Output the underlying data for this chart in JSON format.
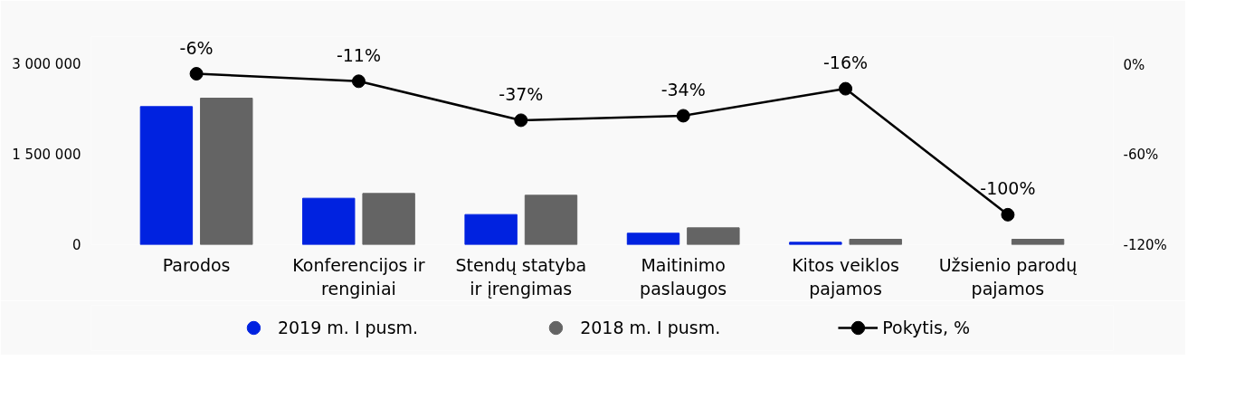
{
  "chart_data": {
    "type": "bar",
    "categories": [
      "Parodos",
      "Konferencijos ir renginiai",
      "Stendų statyba ir įrengimas",
      "Maitinimo paslaugos",
      "Kitos veiklos pajamos",
      "Užsienio parodų pajamos"
    ],
    "series": [
      {
        "name": "2019 m. I pusm.",
        "color": "#0022e0",
        "values": [
          2290000,
          770000,
          500000,
          190000,
          40000,
          null
        ]
      },
      {
        "name": "2018 m. I pusm.",
        "color": "#646464",
        "values": [
          2430000,
          850000,
          820000,
          280000,
          90000,
          90000
        ]
      },
      {
        "name": "Pokytis, %",
        "type": "line",
        "axis": "y2",
        "color": "#000000",
        "marker": "circle",
        "values": [
          -6,
          -11,
          -37,
          -34,
          -16,
          -100
        ],
        "value_labels": [
          "-6%",
          "-11%",
          "-37%",
          "-34%",
          "-16%",
          "-100%"
        ]
      }
    ],
    "ylim": [
      0,
      3450000
    ],
    "yticks": [
      0,
      {
        "value": 1500000,
        "label": "1 500 000"
      },
      {
        "value": 3000000,
        "label": "3 000 000"
      }
    ],
    "y2lim": [
      -120,
      18.75
    ],
    "y2ticks": [
      {
        "value": 0,
        "label": "0%"
      },
      {
        "value": -60,
        "label": "-60%"
      },
      {
        "value": -120,
        "label": "-120%"
      }
    ],
    "legend": "bottom",
    "grid": false
  }
}
